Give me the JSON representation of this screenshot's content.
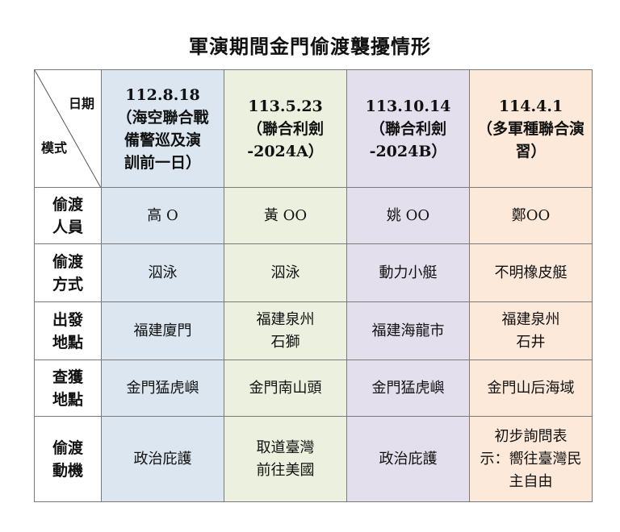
{
  "title": "軍演期間金門偷渡襲擾情形",
  "corner": {
    "top_label": "日期",
    "bottom_label": "模式"
  },
  "columns": [
    {
      "date": "112.8.18",
      "exercise": "（海空聯合戰\n備警巡及演\n訓前一日）",
      "color": "#dce6f1"
    },
    {
      "date": "113.5.23",
      "exercise": "（聯合利劍\n-2024A）",
      "color": "#ebf1de"
    },
    {
      "date": "113.10.14",
      "exercise": "（聯合利劍\n-2024B）",
      "color": "#e4dfec"
    },
    {
      "date": "114.4.1",
      "exercise": "（多軍種聯合演\n習）",
      "color": "#fde9d9"
    }
  ],
  "rows": [
    {
      "label": "偷渡\n人員",
      "cells": [
        "高 O",
        "黃 OO",
        "姚 OO",
        "鄭OO"
      ]
    },
    {
      "label": "偷渡\n方式",
      "cells": [
        "泅泳",
        "泅泳",
        "動力小艇",
        "不明橡皮艇"
      ]
    },
    {
      "label": "出發\n地點",
      "cells": [
        "福建廈門",
        "福建泉州\n石獅",
        "福建海龍市",
        "福建泉州\n石井"
      ]
    },
    {
      "label": "查獲\n地點",
      "cells": [
        "金門猛虎嶼",
        "金門南山頭",
        "金門猛虎嶼",
        "金門山后海域"
      ]
    },
    {
      "label": "偷渡\n動機",
      "cells": [
        "政治庇護",
        "取道臺灣\n前往美國",
        "政治庇護",
        "初步詢問表\n示：嚮往臺灣民\n主自由"
      ]
    }
  ]
}
